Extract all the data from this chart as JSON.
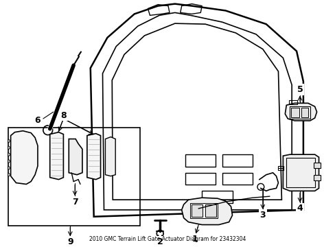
{
  "title": "2010 GMC Terrain Lift Gate Actuator Diagram for 23432304",
  "background_color": "#ffffff",
  "line_color": "#000000",
  "label_color": "#000000",
  "fig_width": 4.89,
  "fig_height": 3.6,
  "dpi": 100
}
